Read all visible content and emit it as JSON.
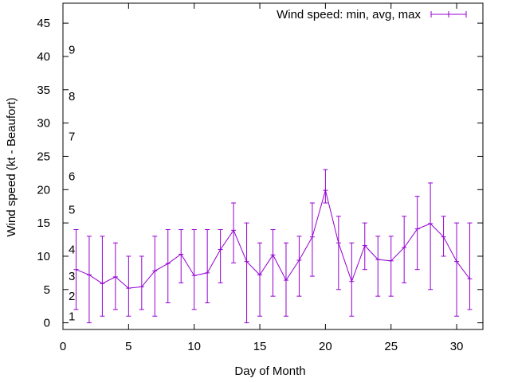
{
  "chart_data": {
    "type": "line",
    "xlabel": "Day of Month",
    "ylabel": "Wind speed (kt - Beaufort)",
    "xlim": [
      0,
      32
    ],
    "ylim": [
      -1,
      48
    ],
    "x_ticks": [
      "0",
      "5",
      "10",
      "15",
      "20",
      "25",
      "30"
    ],
    "y_ticks": [
      "0",
      "5",
      "10",
      "15",
      "20",
      "25",
      "30",
      "35",
      "40",
      "45"
    ],
    "beaufort_labels": [
      {
        "label": "1",
        "y": 1
      },
      {
        "label": "2",
        "y": 4
      },
      {
        "label": "3",
        "y": 7
      },
      {
        "label": "4",
        "y": 11
      },
      {
        "label": "5",
        "y": 17
      },
      {
        "label": "6",
        "y": 22
      },
      {
        "label": "7",
        "y": 28
      },
      {
        "label": "8",
        "y": 34
      },
      {
        "label": "9",
        "y": 41
      }
    ],
    "grid": false,
    "legend_position": "top-right",
    "series": [
      {
        "name": "Wind speed: min, avg, max",
        "color": "#9400d3",
        "x": [
          1,
          2,
          3,
          4,
          5,
          6,
          7,
          8,
          9,
          10,
          11,
          12,
          13,
          14,
          15,
          16,
          17,
          18,
          19,
          20,
          21,
          22,
          23,
          24,
          25,
          26,
          27,
          28,
          29,
          30,
          31
        ],
        "avg": [
          8.0,
          7.2,
          5.9,
          6.9,
          5.2,
          5.4,
          7.8,
          8.9,
          10.3,
          7.1,
          7.5,
          11.0,
          13.9,
          9.2,
          7.2,
          10.2,
          6.4,
          9.4,
          12.9,
          19.9,
          12.0,
          6.2,
          11.6,
          9.5,
          9.3,
          11.3,
          14.1,
          14.9,
          12.9,
          9.2,
          6.6
        ],
        "min": [
          2,
          0,
          1,
          2,
          1,
          2,
          1,
          3,
          6,
          2,
          3,
          6,
          9,
          0,
          1,
          4,
          1,
          4,
          7,
          18,
          5,
          1,
          8,
          4,
          4,
          6,
          8,
          5,
          10,
          1,
          2
        ],
        "max": [
          14,
          13,
          13,
          12,
          10,
          10,
          13,
          14,
          14,
          14,
          14,
          14,
          18,
          15,
          12,
          14,
          12,
          13,
          18,
          23,
          16,
          12,
          15,
          13,
          13,
          16,
          19,
          21,
          16,
          15,
          15
        ]
      }
    ]
  }
}
